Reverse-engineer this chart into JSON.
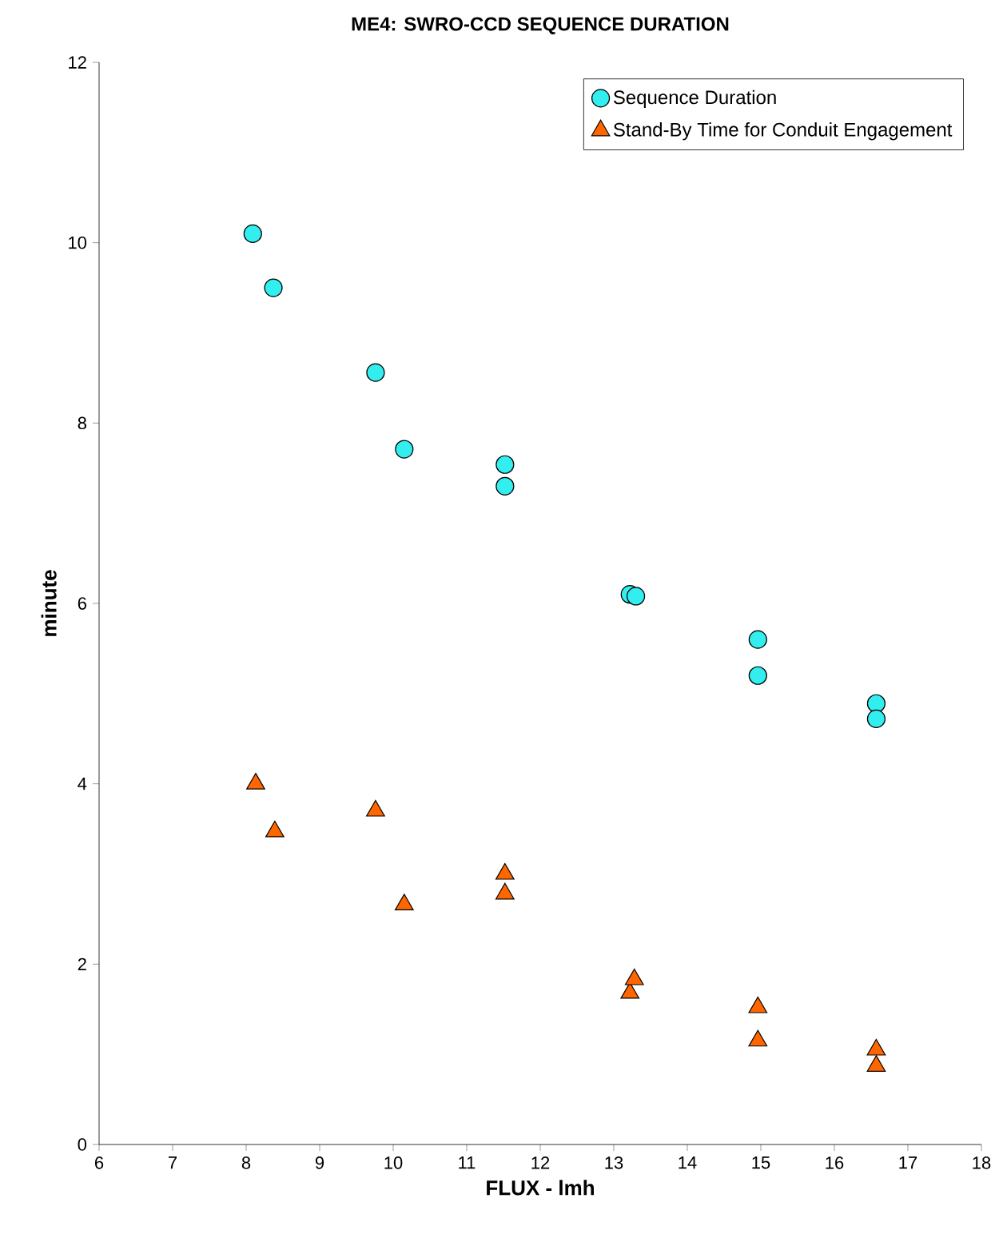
{
  "chart_data": {
    "type": "scatter",
    "title": "ME4:  SWRO-CCD SEQUENCE DURATION",
    "xlabel": "FLUX - lmh",
    "ylabel": "minute",
    "xlim": [
      6,
      18
    ],
    "xticks": [
      6,
      7,
      8,
      9,
      10,
      11,
      12,
      13,
      14,
      15,
      16,
      17,
      18
    ],
    "ylim": [
      0,
      12
    ],
    "yticks": [
      0,
      2,
      4,
      6,
      8,
      10,
      12
    ],
    "legend": "top right",
    "grid": false,
    "series": [
      {
        "name": "Sequence Duration",
        "color": "#33eeee",
        "marker": "circle",
        "x": [
          8.09,
          8.37,
          9.76,
          10.15,
          11.52,
          11.52,
          13.22,
          13.3,
          14.96,
          14.96,
          16.57,
          16.57
        ],
        "values": [
          10.1,
          9.5,
          8.56,
          7.71,
          7.54,
          7.3,
          6.1,
          6.08,
          5.6,
          5.2,
          4.89,
          4.72
        ]
      },
      {
        "name": "Stand-By Time for Conduit  Engagement",
        "color": "#ff6600",
        "marker": "triangle",
        "x": [
          8.13,
          8.39,
          9.76,
          10.15,
          11.52,
          11.52,
          13.22,
          13.28,
          14.96,
          14.96,
          16.57,
          16.57
        ],
        "values": [
          4.0,
          3.47,
          3.7,
          2.66,
          3.0,
          2.78,
          1.68,
          1.83,
          1.52,
          1.15,
          1.05,
          0.87
        ]
      }
    ]
  }
}
